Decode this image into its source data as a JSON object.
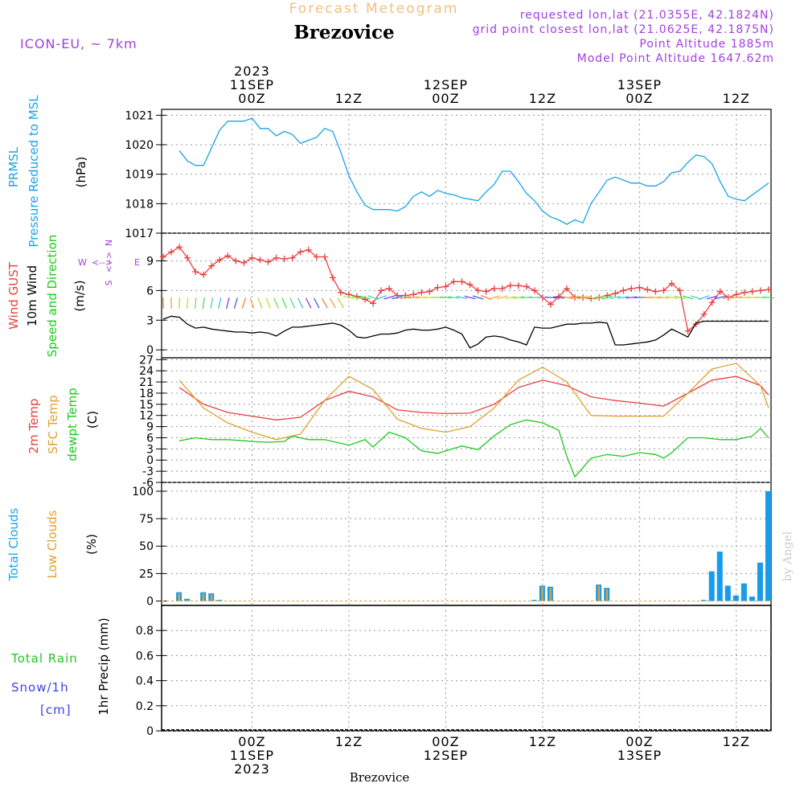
{
  "header": {
    "top_title": "Forecast Meteogram",
    "station": "Brezovice",
    "model": "ICON-EU, ~ 7km",
    "requested": "requested lon,lat (21.0355E, 42.1824N)",
    "grid_point": "grid point closest lon,lat (21.0625E, 42.1875N)",
    "altitude": "Point Altitude 1885m",
    "model_altitude": "Model Point Altitude 1647.62m",
    "footer_station": "Brezovice",
    "watermark": "by Angel"
  },
  "time_axis": {
    "top_labels": [
      {
        "t": 0,
        "lines": [
          "2023",
          "11SEP",
          "00Z"
        ]
      },
      {
        "t": 12,
        "lines": [
          "12Z"
        ]
      },
      {
        "t": 24,
        "lines": [
          "12SEP",
          "00Z"
        ]
      },
      {
        "t": 36,
        "lines": [
          "12Z"
        ]
      },
      {
        "t": 48,
        "lines": [
          "13SEP",
          "00Z"
        ]
      },
      {
        "t": 60,
        "lines": [
          "12Z"
        ]
      }
    ],
    "bottom_labels": [
      {
        "t": 0,
        "lines": [
          "00Z",
          "11SEP",
          "2023"
        ]
      },
      {
        "t": 12,
        "lines": [
          "12Z"
        ]
      },
      {
        "t": 24,
        "lines": [
          "00Z",
          "12SEP"
        ]
      },
      {
        "t": 36,
        "lines": [
          "12Z"
        ]
      },
      {
        "t": 48,
        "lines": [
          "00Z",
          "13SEP"
        ]
      },
      {
        "t": 60,
        "lines": [
          "12Z"
        ]
      }
    ]
  },
  "panel_labels": {
    "pressure": [
      "PRMSL",
      "Pressure Reduced to MSL",
      "(hPa)"
    ],
    "wind": [
      "Wind GUST",
      "10m Wind",
      "Speed and Direction",
      "(m/s)"
    ],
    "compass": {
      "n": "N",
      "s": "S",
      "w": "W",
      "e": "E",
      "arrow_ns": "<-->",
      "arrow_we": "<-->"
    },
    "temp": [
      "2m Temp",
      "SFC Temp",
      "dewpt Temp",
      "(C)"
    ],
    "clouds": [
      "Total Clouds",
      "Low Clouds",
      "(%)"
    ],
    "precip": [
      "Total Rain",
      "Snow/1h",
      "[cm]",
      "1hr Precip (mm)"
    ]
  },
  "colors": {
    "pressure": "#1aa3e8",
    "gust": "#e84040",
    "wind": "#000000",
    "sfc_temp": "#e0a030",
    "dewpt": "#20c820",
    "total_cloud": "#1a9be8",
    "low_cloud": "#e0a030",
    "rain": "#20c820",
    "snow": "#4040e8",
    "header_purple": "#a040e0",
    "header_orange": "#f0c080"
  },
  "chart_data": [
    {
      "type": "line",
      "title": "PRMSL Pressure Reduced to MSL",
      "ylabel": "(hPa)",
      "ylim": [
        1017,
        1021.2
      ],
      "yticks": [
        1017,
        1018,
        1019,
        1020,
        1021
      ],
      "series": [
        {
          "name": "PRMSL",
          "x": [
            -9,
            -8,
            -7,
            -6,
            -5,
            -4,
            -3,
            -2,
            -1,
            0,
            1,
            2,
            3,
            4,
            5,
            6,
            7,
            8,
            9,
            10,
            11,
            12,
            13,
            14,
            15,
            16,
            17,
            18,
            19,
            20,
            21,
            22,
            23,
            24,
            25,
            26,
            27,
            28,
            29,
            30,
            31,
            32,
            33,
            34,
            35,
            36,
            37,
            38,
            39,
            40,
            41,
            42,
            43,
            44,
            45,
            46,
            47,
            48,
            49,
            50,
            51,
            52,
            53,
            54,
            55,
            56,
            57,
            58,
            59,
            60,
            61,
            62,
            63,
            64
          ],
          "values": [
            1019.8,
            1019.45,
            1019.3,
            1019.3,
            1019.9,
            1020.5,
            1020.8,
            1020.8,
            1020.8,
            1020.9,
            1020.55,
            1020.55,
            1020.3,
            1020.45,
            1020.35,
            1020.05,
            1020.15,
            1020.25,
            1020.55,
            1020.45,
            1019.75,
            1018.95,
            1018.4,
            1017.95,
            1017.8,
            1017.8,
            1017.8,
            1017.75,
            1017.9,
            1018.25,
            1018.4,
            1018.25,
            1018.45,
            1018.35,
            1018.3,
            1018.2,
            1018.15,
            1018.1,
            1018.4,
            1018.65,
            1019.1,
            1019.1,
            1018.75,
            1018.35,
            1018.1,
            1017.75,
            1017.55,
            1017.45,
            1017.3,
            1017.45,
            1017.35,
            1018.0,
            1018.4,
            1018.8,
            1018.9,
            1018.8,
            1018.7,
            1018.7,
            1018.6,
            1018.6,
            1018.75,
            1019.05,
            1019.1,
            1019.4,
            1019.65,
            1019.6,
            1019.35,
            1018.75,
            1018.25,
            1018.15,
            1018.1,
            1018.3,
            1018.5,
            1018.7
          ]
        }
      ]
    },
    {
      "type": "line",
      "title": "Wind GUST / 10m Wind Speed and Direction",
      "ylabel": "(m/s)",
      "ylim": [
        -0.8,
        11.8
      ],
      "yticks": [
        0,
        3,
        6,
        9
      ],
      "series": [
        {
          "name": "Wind GUST",
          "x": [
            -11,
            -10,
            -9,
            -8,
            -7,
            -6,
            -5,
            -4,
            -3,
            -2,
            -1,
            0,
            1,
            2,
            3,
            4,
            5,
            6,
            7,
            8,
            9,
            10,
            11,
            12,
            13,
            14,
            15,
            16,
            17,
            18,
            19,
            20,
            21,
            22,
            23,
            24,
            25,
            26,
            27,
            28,
            29,
            30,
            31,
            32,
            33,
            34,
            35,
            36,
            37,
            38,
            39,
            40,
            41,
            42,
            43,
            44,
            45,
            46,
            47,
            48,
            49,
            50,
            51,
            52,
            53,
            54,
            55,
            56,
            57,
            58,
            59,
            60,
            61,
            62,
            63,
            64
          ],
          "values": [
            9.4,
            9.9,
            10.4,
            9.3,
            7.9,
            7.6,
            8.5,
            9.1,
            9.5,
            9.0,
            8.8,
            9.3,
            9.1,
            8.9,
            9.3,
            9.2,
            9.3,
            9.9,
            10.1,
            9.4,
            9.4,
            7.3,
            5.8,
            5.6,
            5.4,
            5.1,
            4.7,
            6.0,
            6.2,
            5.5,
            5.5,
            5.6,
            5.8,
            5.9,
            6.3,
            6.4,
            6.9,
            6.9,
            6.6,
            6.0,
            5.9,
            6.2,
            6.2,
            6.5,
            6.5,
            6.4,
            6.0,
            5.3,
            4.6,
            5.4,
            6.2,
            5.3,
            5.3,
            5.2,
            5.3,
            5.5,
            5.7,
            6.0,
            6.2,
            6.3,
            6.1,
            5.9,
            6.0,
            6.7,
            6.0,
            1.9,
            2.6,
            3.6,
            4.8,
            5.9,
            5.3,
            5.6,
            5.8,
            5.9,
            6.0,
            6.1
          ]
        },
        {
          "name": "10m Wind",
          "x": [
            -11,
            -10,
            -9,
            -8,
            -7,
            -6,
            -5,
            -4,
            -3,
            -2,
            -1,
            0,
            1,
            2,
            3,
            4,
            5,
            6,
            7,
            8,
            9,
            10,
            11,
            12,
            13,
            14,
            15,
            16,
            17,
            18,
            19,
            20,
            21,
            22,
            23,
            24,
            25,
            26,
            27,
            28,
            29,
            30,
            31,
            32,
            33,
            34,
            35,
            36,
            37,
            38,
            39,
            40,
            41,
            42,
            43,
            44,
            45,
            46,
            47,
            48,
            49,
            50,
            51,
            52,
            53,
            54,
            55,
            56,
            57,
            58,
            59,
            60,
            61,
            62,
            63,
            64
          ],
          "values": [
            3.1,
            3.4,
            3.3,
            2.6,
            2.2,
            2.3,
            2.1,
            2.0,
            1.9,
            1.8,
            1.8,
            1.7,
            1.8,
            1.7,
            1.4,
            1.9,
            2.3,
            2.3,
            2.4,
            2.5,
            2.6,
            2.7,
            2.5,
            2.0,
            1.3,
            1.2,
            1.4,
            1.6,
            1.6,
            1.7,
            2.0,
            2.1,
            2.0,
            2.0,
            2.1,
            2.3,
            2.0,
            1.6,
            0.2,
            0.6,
            1.3,
            1.4,
            1.3,
            1.0,
            0.8,
            0.5,
            2.3,
            2.2,
            2.2,
            2.4,
            2.6,
            2.6,
            2.7,
            2.7,
            2.8,
            2.7,
            0.5,
            0.5,
            0.6,
            0.7,
            0.8,
            1.0,
            1.5,
            2.1,
            1.7,
            1.3,
            2.7,
            2.9,
            2.9,
            2.9,
            2.9,
            2.9,
            2.9,
            2.9,
            2.9,
            2.9
          ]
        }
      ]
    },
    {
      "type": "line",
      "title": "2m Temp / SFC Temp / dewpt Temp",
      "ylabel": "(C)",
      "ylim": [
        -6,
        27.5
      ],
      "yticks": [
        -6,
        -3,
        0,
        3,
        6,
        9,
        12,
        15,
        18,
        21,
        24,
        27
      ],
      "series": [
        {
          "name": "2m Temp",
          "x": [
            -9,
            -6,
            -3,
            0,
            3,
            6,
            9,
            12,
            15,
            18,
            21,
            24,
            27,
            30,
            33,
            36,
            39,
            42,
            45,
            48,
            51,
            54,
            57,
            60,
            63,
            64
          ],
          "values": [
            19.5,
            15.0,
            12.8,
            11.8,
            10.8,
            11.5,
            16.0,
            18.5,
            17.0,
            13.5,
            12.8,
            12.5,
            12.6,
            15.0,
            19.5,
            21.5,
            20.0,
            17.0,
            16.0,
            15.3,
            14.5,
            18.0,
            21.5,
            22.5,
            20.0,
            17.5
          ]
        },
        {
          "name": "SFC Temp",
          "x": [
            -9,
            -6,
            -3,
            0,
            3,
            6,
            9,
            12,
            15,
            18,
            21,
            24,
            27,
            30,
            33,
            36,
            39,
            42,
            45,
            48,
            51,
            54,
            57,
            60,
            63,
            64
          ],
          "values": [
            21.5,
            14.0,
            10.0,
            7.5,
            5.5,
            7.0,
            16.0,
            22.5,
            19.0,
            11.0,
            8.5,
            7.5,
            9.0,
            14.0,
            21.5,
            25.0,
            21.0,
            12.0,
            11.8,
            11.8,
            11.8,
            18.0,
            24.5,
            26.0,
            20.0,
            14.0
          ]
        },
        {
          "name": "dewpt Temp",
          "x": [
            -9,
            -7,
            -5,
            -3,
            -1,
            0,
            2,
            4,
            5,
            7,
            9,
            12,
            14,
            15,
            17,
            19,
            21,
            23,
            24,
            26,
            28,
            30,
            32,
            34,
            36,
            38,
            39,
            40,
            42,
            44,
            46,
            48,
            50,
            51,
            52,
            54,
            56,
            58,
            60,
            62,
            63,
            64
          ],
          "values": [
            5.2,
            6.0,
            5.5,
            5.5,
            5.2,
            5.0,
            4.8,
            5.0,
            6.5,
            5.5,
            5.5,
            4.0,
            5.5,
            3.5,
            7.5,
            6.0,
            2.5,
            1.8,
            2.5,
            3.8,
            2.8,
            6.5,
            9.5,
            10.8,
            10.0,
            8.0,
            1.0,
            -4.5,
            0.5,
            1.5,
            1.0,
            2.0,
            1.5,
            0.5,
            2.0,
            6.0,
            6.0,
            5.5,
            5.5,
            6.5,
            8.5,
            6.0
          ]
        }
      ]
    },
    {
      "type": "bar",
      "title": "Total Clouds / Low Clouds",
      "ylabel": "(%)",
      "ylim": [
        -4,
        108
      ],
      "yticks": [
        0,
        25,
        50,
        75,
        100
      ],
      "series": [
        {
          "name": "Total Clouds",
          "x": [
            -9,
            -8,
            -6,
            -5,
            -4,
            35,
            36,
            37,
            43,
            44,
            56,
            57,
            58,
            59,
            60,
            61,
            62,
            63,
            64
          ],
          "values": [
            8,
            2,
            8,
            7,
            1,
            1,
            14,
            13,
            15,
            12,
            1,
            27,
            45,
            14,
            5,
            16,
            4,
            35,
            100
          ]
        },
        {
          "name": "Low Clouds",
          "x": [
            -9,
            -8,
            -6,
            -5,
            -4,
            35,
            36,
            37,
            43,
            44,
            56,
            57,
            58,
            59,
            60,
            61,
            62,
            63,
            64
          ],
          "values": [
            7,
            1,
            7,
            6,
            0,
            0,
            13,
            12,
            14,
            11,
            0,
            0,
            0,
            0,
            0,
            0,
            0,
            0,
            0
          ]
        }
      ]
    },
    {
      "type": "bar",
      "title": "Total Rain / Snow per 1h",
      "ylabel": "1hr Precip (mm)",
      "ylim": [
        0,
        1
      ],
      "yticks": [
        0,
        0.2,
        0.4,
        0.6,
        0.8
      ],
      "series": [
        {
          "name": "Total Rain",
          "x": [],
          "values": []
        },
        {
          "name": "Snow/1h",
          "x": [],
          "values": []
        }
      ]
    }
  ]
}
